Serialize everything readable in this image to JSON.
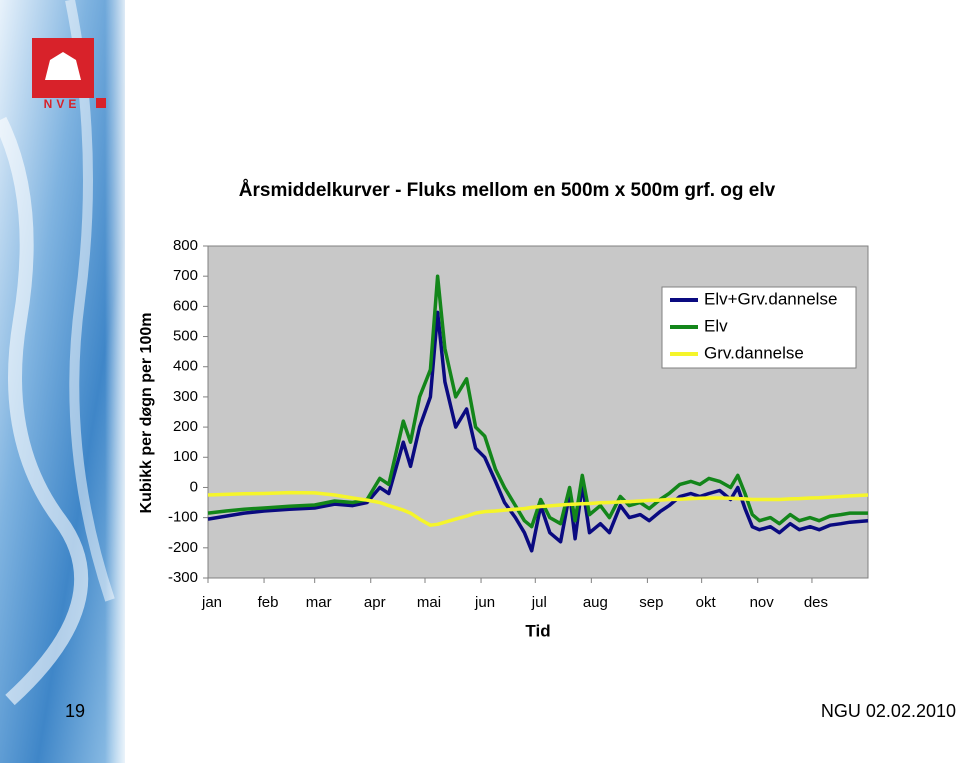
{
  "slide": {
    "logo_text": "NVE",
    "page_number": "19",
    "footer": "NGU 02.02.2010"
  },
  "chart_data": {
    "type": "line",
    "title": "Årsmiddelkurver - Fluks mellom en 500m x 500m grf. og elv",
    "y_label": "Kubikk per døgn per 100m",
    "x_label": "Tid",
    "x": [
      0,
      10,
      20,
      31,
      45,
      59,
      70,
      80,
      88,
      95,
      100,
      108,
      112,
      117,
      123,
      127,
      131,
      137,
      143,
      148,
      153,
      159,
      164,
      170,
      175,
      179,
      184,
      189,
      195,
      200,
      203,
      207,
      211,
      217,
      222,
      228,
      233,
      239,
      244,
      250,
      255,
      261,
      267,
      272,
      277,
      283,
      289,
      293,
      297,
      301,
      305,
      311,
      316,
      322,
      327,
      333,
      338,
      344,
      350,
      355,
      365
    ],
    "xlim": [
      0,
      365
    ],
    "xticks": [
      {
        "value": 0,
        "label": "jan"
      },
      {
        "value": 31,
        "label": "feb"
      },
      {
        "value": 59,
        "label": "mar"
      },
      {
        "value": 90,
        "label": "apr"
      },
      {
        "value": 120,
        "label": "mai"
      },
      {
        "value": 151,
        "label": "jun"
      },
      {
        "value": 181,
        "label": "jul"
      },
      {
        "value": 212,
        "label": "aug"
      },
      {
        "value": 243,
        "label": "sep"
      },
      {
        "value": 273,
        "label": "okt"
      },
      {
        "value": 304,
        "label": "nov"
      },
      {
        "value": 334,
        "label": "des"
      }
    ],
    "ylim": [
      -300,
      800
    ],
    "yticks": [
      -300,
      -200,
      -100,
      0,
      100,
      200,
      300,
      400,
      500,
      600,
      700,
      800
    ],
    "grid": false,
    "plot_background": "#c8c8c8",
    "legend": "upper right",
    "series": [
      {
        "name": "Elv+Grv.dannelse",
        "color": "#0a0a80",
        "values": [
          -105,
          -95,
          -85,
          -78,
          -72,
          -68,
          -55,
          -60,
          -50,
          0,
          -20,
          150,
          70,
          200,
          300,
          580,
          350,
          200,
          260,
          130,
          100,
          20,
          -50,
          -100,
          -150,
          -210,
          -60,
          -150,
          -180,
          -20,
          -170,
          10,
          -150,
          -120,
          -150,
          -60,
          -100,
          -90,
          -110,
          -80,
          -60,
          -30,
          -20,
          -30,
          -20,
          -10,
          -40,
          0,
          -70,
          -130,
          -140,
          -130,
          -150,
          -120,
          -140,
          -130,
          -140,
          -125,
          -120,
          -115,
          -110
        ]
      },
      {
        "name": "Elv",
        "color": "#13861a",
        "values": [
          -85,
          -78,
          -72,
          -68,
          -62,
          -58,
          -45,
          -50,
          -40,
          30,
          10,
          220,
          150,
          300,
          390,
          700,
          460,
          300,
          360,
          200,
          170,
          60,
          0,
          -60,
          -110,
          -130,
          -40,
          -100,
          -120,
          0,
          -110,
          40,
          -90,
          -60,
          -100,
          -30,
          -60,
          -50,
          -70,
          -40,
          -20,
          10,
          20,
          10,
          30,
          20,
          0,
          40,
          -20,
          -90,
          -110,
          -100,
          -120,
          -90,
          -110,
          -100,
          -110,
          -95,
          -90,
          -85,
          -85
        ]
      },
      {
        "name": "Grv.dannelse",
        "color": "#f5f52a",
        "values": [
          -25,
          -23,
          -21,
          -20,
          -17,
          -18,
          -25,
          -35,
          -42,
          -50,
          -60,
          -75,
          -85,
          -105,
          -125,
          -122,
          -115,
          -105,
          -95,
          -85,
          -80,
          -78,
          -75,
          -72,
          -70,
          -66,
          -63,
          -61,
          -58,
          -56,
          -55,
          -54,
          -53,
          -51,
          -50,
          -48,
          -47,
          -45,
          -43,
          -42,
          -40,
          -39,
          -37,
          -36,
          -35,
          -35,
          -36,
          -37,
          -38,
          -40,
          -40,
          -40,
          -40,
          -38,
          -37,
          -35,
          -34,
          -32,
          -30,
          -28,
          -25
        ]
      }
    ]
  }
}
